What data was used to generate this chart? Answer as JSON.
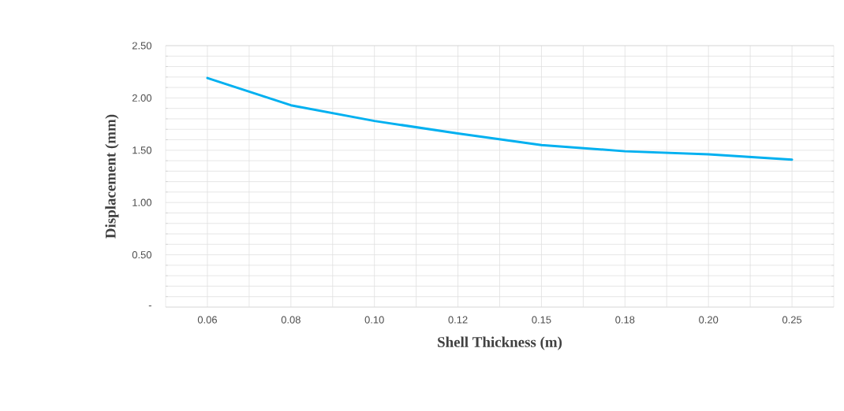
{
  "chart_data": {
    "type": "line",
    "xlabel": "Shell Thickness (m)",
    "ylabel": "Displacement (mm)",
    "categories": [
      "0.06",
      "0.08",
      "0.10",
      "0.12",
      "0.15",
      "0.18",
      "0.20",
      "0.25"
    ],
    "series": [
      {
        "color": "#00b0f0",
        "values": [
          2.19,
          1.93,
          1.78,
          1.66,
          1.55,
          1.49,
          1.46,
          1.41
        ]
      }
    ],
    "ylim": [
      0,
      2.5
    ],
    "yticks": [
      {
        "value": 0,
        "label": "-"
      },
      {
        "value": 0.5,
        "label": "0.50"
      },
      {
        "value": 1,
        "label": "1.00"
      },
      {
        "value": 1.5,
        "label": "1.50"
      },
      {
        "value": 2,
        "label": "2.00"
      },
      {
        "value": 2.5,
        "label": "2.50"
      }
    ],
    "grid": true,
    "marker": "none",
    "line_style": "solid"
  }
}
